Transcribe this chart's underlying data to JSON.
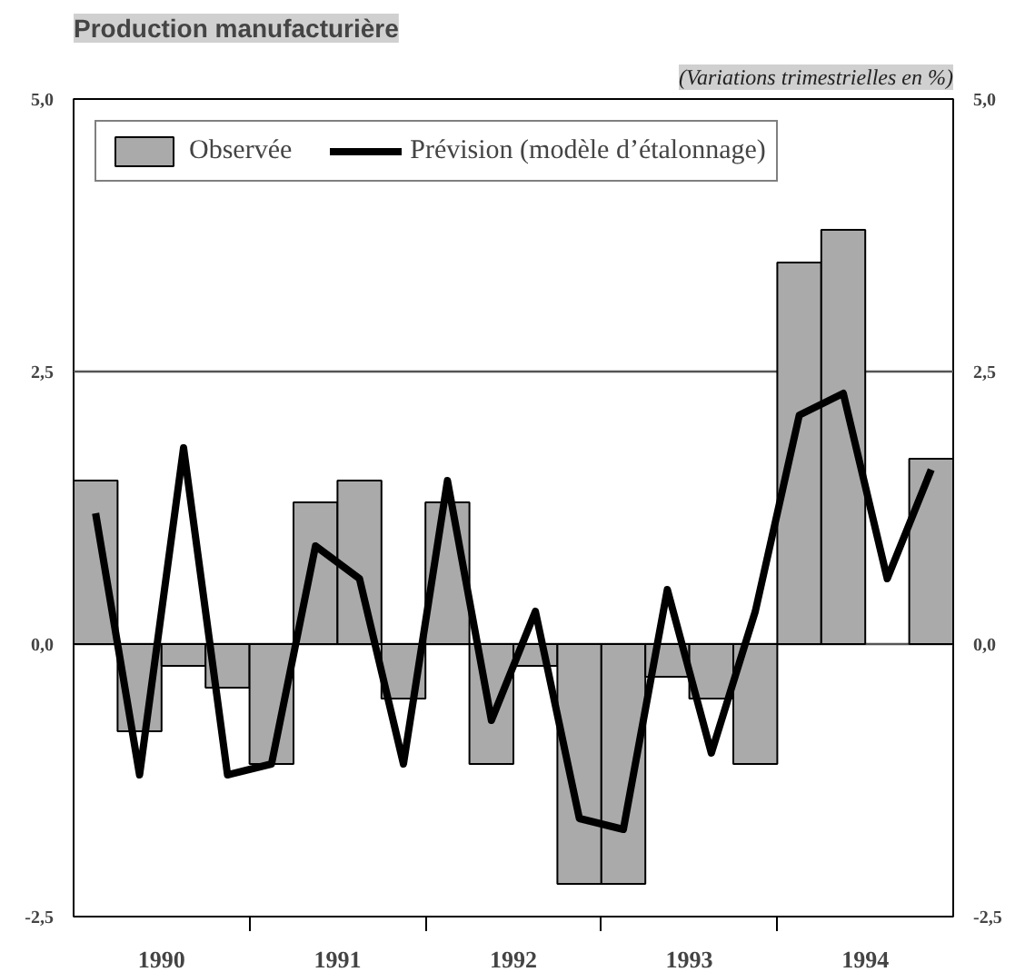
{
  "chart_data": {
    "type": "bar",
    "title": "Production manufacturière",
    "subtitle": "(Variations trimestrielles en %)",
    "x": [
      1990.125,
      1990.375,
      1990.625,
      1990.875,
      1991.125,
      1991.375,
      1991.625,
      1991.875,
      1992.125,
      1992.375,
      1992.625,
      1992.875,
      1993.125,
      1993.375,
      1993.625,
      1993.875,
      1994.125,
      1994.375,
      1994.625,
      1994.875
    ],
    "series": [
      {
        "name": "Observée",
        "color": "#aaaaaa",
        "values": [
          1.5,
          -0.8,
          -0.2,
          -0.4,
          -1.1,
          1.3,
          1.5,
          -0.5,
          1.3,
          -1.1,
          -0.2,
          -2.2,
          -2.2,
          -0.3,
          -0.5,
          -1.1,
          3.5,
          3.8,
          null,
          1.7
        ]
      },
      {
        "name": "Prévision (modèle d’étalonnage)",
        "type": "line",
        "color": "#000000",
        "values": [
          1.2,
          -1.2,
          1.8,
          -1.2,
          -1.1,
          0.9,
          0.6,
          -1.1,
          1.5,
          -0.7,
          0.3,
          -1.6,
          -1.7,
          0.5,
          -1.0,
          0.3,
          2.1,
          2.3,
          0.6,
          1.6
        ]
      }
    ],
    "xlim": [
      1990,
      1995
    ],
    "xticks": [
      {
        "value": 1990.5,
        "label": "1990"
      },
      {
        "value": 1991,
        "label": null
      },
      {
        "value": 1991.5,
        "label": "1991"
      },
      {
        "value": 1992,
        "label": null
      },
      {
        "value": 1992.5,
        "label": "1992"
      },
      {
        "value": 1993,
        "label": null
      },
      {
        "value": 1993.5,
        "label": "1993"
      },
      {
        "value": 1994,
        "label": null
      },
      {
        "value": 1994.5,
        "label": "1994"
      }
    ],
    "ylim": [
      -2.5,
      5.0
    ],
    "yticks": [
      {
        "value": -2.5,
        "label": "-2,5"
      },
      {
        "value": 0,
        "label": "0,0"
      },
      {
        "value": 2.5,
        "label": "2,5"
      },
      {
        "value": 5.0,
        "label": "5,0"
      }
    ],
    "y2lim": [
      -2.5,
      5.0
    ],
    "y2ticks": [
      {
        "value": -2.5,
        "label": "-2,5"
      },
      {
        "value": 0,
        "label": "0,0"
      },
      {
        "value": 2.5,
        "label": "2,5"
      },
      {
        "value": 5.0,
        "label": "5,0"
      }
    ],
    "grid": "y",
    "legend": "top left"
  }
}
